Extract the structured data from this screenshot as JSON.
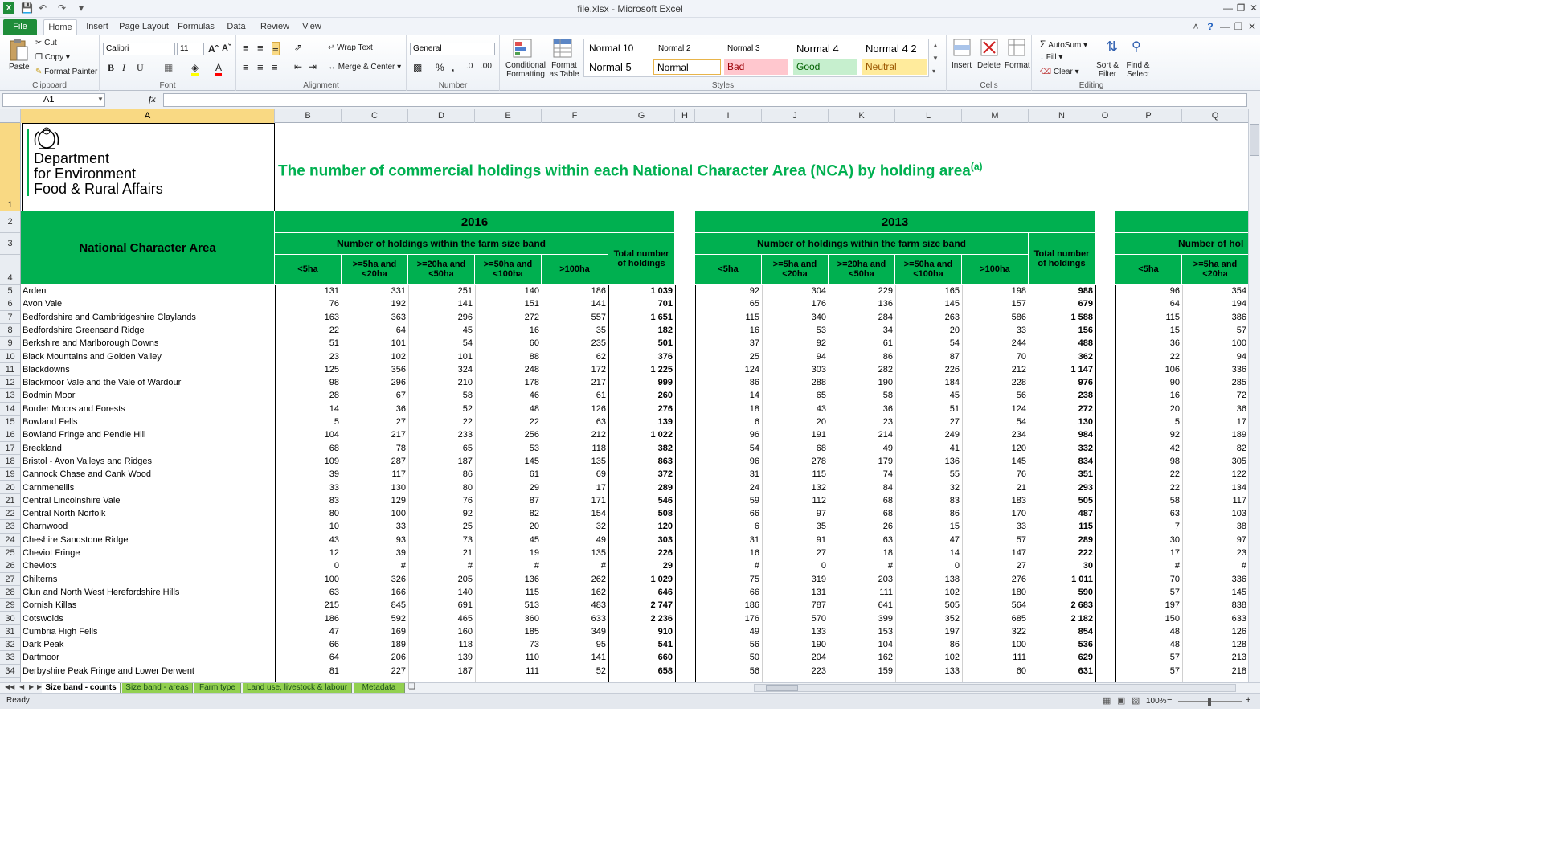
{
  "window": {
    "title": "file.xlsx - Microsoft Excel"
  },
  "tabs": [
    "File",
    "Home",
    "Insert",
    "Page Layout",
    "Formulas",
    "Data",
    "Review",
    "View"
  ],
  "ribbon": {
    "clipboard": {
      "paste": "Paste",
      "cut": "Cut",
      "copy": "Copy",
      "format_painter": "Format Painter",
      "group": "Clipboard"
    },
    "font": {
      "name": "Calibri",
      "size": "11",
      "group": "Font"
    },
    "alignment": {
      "wrap": "Wrap Text",
      "merge": "Merge & Center",
      "group": "Alignment"
    },
    "number": {
      "format": "General",
      "group": "Number"
    },
    "styles": {
      "conditional": "Conditional Formatting",
      "format_table": "Format as Table",
      "group": "Styles",
      "cells": [
        {
          "label": "Normal 10",
          "bg": "#ffffff",
          "color": "#000000"
        },
        {
          "label": "Normal 2",
          "bg": "#ffffff",
          "color": "#000000"
        },
        {
          "label": "Normal 3",
          "bg": "#ffffff",
          "color": "#000000"
        },
        {
          "label": "Normal 4",
          "bg": "#ffffff",
          "color": "#000000"
        },
        {
          "label": "Normal 4 2",
          "bg": "#ffffff",
          "color": "#000000"
        },
        {
          "label": "Normal 5",
          "bg": "#ffffff",
          "color": "#000000"
        },
        {
          "label": "Normal",
          "bg": "#ffffff",
          "color": "#000000"
        },
        {
          "label": "Bad",
          "bg": "#ffc7ce",
          "color": "#9c0006"
        },
        {
          "label": "Good",
          "bg": "#c6efce",
          "color": "#006100"
        },
        {
          "label": "Neutral",
          "bg": "#ffeb9c",
          "color": "#9c5700"
        }
      ]
    },
    "cells": {
      "insert": "Insert",
      "delete": "Delete",
      "format": "Format",
      "group": "Cells"
    },
    "editing": {
      "autosum": "AutoSum",
      "fill": "Fill",
      "clear": "Clear",
      "sort": "Sort & Filter",
      "find": "Find & Select",
      "group": "Editing"
    }
  },
  "formula_bar": {
    "name_box": "A1",
    "fx": "fx",
    "value": ""
  },
  "columns": [
    "A",
    "B",
    "C",
    "D",
    "E",
    "F",
    "G",
    "H",
    "I",
    "J",
    "K",
    "L",
    "M",
    "N",
    "O",
    "P",
    "Q"
  ],
  "rows": [
    1,
    2,
    3,
    4,
    5,
    6,
    7,
    8,
    9,
    10,
    11,
    12,
    13,
    14,
    15,
    16,
    17,
    18,
    19,
    20,
    21,
    22,
    23,
    24,
    25,
    26,
    27,
    28,
    29,
    30,
    31,
    32,
    33,
    34
  ],
  "logo": {
    "line1": "Department",
    "line2": "for Environment",
    "line3": "Food & Rural Affairs"
  },
  "sheet": {
    "title": "The number of commercial holdings within each National Character Area (NCA) by holding area",
    "title_sup": "(a)",
    "title_color": "#00b050",
    "header_color": "#00b050",
    "col_label": "National Character Area",
    "blocks": [
      {
        "year": "2016",
        "band_label": "Number of holdings within the farm size band",
        "total_label": "Total number of holdings"
      },
      {
        "year": "2013",
        "band_label": "Number of holdings within the farm size band",
        "total_label": "Total number of holdings"
      },
      {
        "year": "",
        "band_label": "Number of hol",
        "total_label": ""
      }
    ],
    "bands": [
      "<5ha",
      ">=5ha and <20ha",
      ">=20ha and <50ha",
      ">=50ha and <100ha",
      ">100ha"
    ],
    "data": [
      [
        "Arden",
        "131",
        "331",
        "251",
        "140",
        "186",
        "1 039",
        "92",
        "304",
        "229",
        "165",
        "198",
        "988",
        "96",
        "354"
      ],
      [
        "Avon Vale",
        "76",
        "192",
        "141",
        "151",
        "141",
        "701",
        "65",
        "176",
        "136",
        "145",
        "157",
        "679",
        "64",
        "194"
      ],
      [
        "Bedfordshire and Cambridgeshire Claylands",
        "163",
        "363",
        "296",
        "272",
        "557",
        "1 651",
        "115",
        "340",
        "284",
        "263",
        "586",
        "1 588",
        "115",
        "386"
      ],
      [
        "Bedfordshire Greensand Ridge",
        "22",
        "64",
        "45",
        "16",
        "35",
        "182",
        "16",
        "53",
        "34",
        "20",
        "33",
        "156",
        "15",
        "57"
      ],
      [
        "Berkshire and Marlborough Downs",
        "51",
        "101",
        "54",
        "60",
        "235",
        "501",
        "37",
        "92",
        "61",
        "54",
        "244",
        "488",
        "36",
        "100"
      ],
      [
        "Black Mountains and Golden Valley",
        "23",
        "102",
        "101",
        "88",
        "62",
        "376",
        "25",
        "94",
        "86",
        "87",
        "70",
        "362",
        "22",
        "94"
      ],
      [
        "Blackdowns",
        "125",
        "356",
        "324",
        "248",
        "172",
        "1 225",
        "124",
        "303",
        "282",
        "226",
        "212",
        "1 147",
        "106",
        "336"
      ],
      [
        "Blackmoor Vale and the Vale of Wardour",
        "98",
        "296",
        "210",
        "178",
        "217",
        "999",
        "86",
        "288",
        "190",
        "184",
        "228",
        "976",
        "90",
        "285"
      ],
      [
        "Bodmin Moor",
        "28",
        "67",
        "58",
        "46",
        "61",
        "260",
        "14",
        "65",
        "58",
        "45",
        "56",
        "238",
        "16",
        "72"
      ],
      [
        "Border Moors and Forests",
        "14",
        "36",
        "52",
        "48",
        "126",
        "276",
        "18",
        "43",
        "36",
        "51",
        "124",
        "272",
        "20",
        "36"
      ],
      [
        "Bowland Fells",
        "5",
        "27",
        "22",
        "22",
        "63",
        "139",
        "6",
        "20",
        "23",
        "27",
        "54",
        "130",
        "5",
        "17"
      ],
      [
        "Bowland Fringe and Pendle Hill",
        "104",
        "217",
        "233",
        "256",
        "212",
        "1 022",
        "96",
        "191",
        "214",
        "249",
        "234",
        "984",
        "92",
        "189"
      ],
      [
        "Breckland",
        "68",
        "78",
        "65",
        "53",
        "118",
        "382",
        "54",
        "68",
        "49",
        "41",
        "120",
        "332",
        "42",
        "82"
      ],
      [
        "Bristol - Avon Valleys and Ridges",
        "109",
        "287",
        "187",
        "145",
        "135",
        "863",
        "96",
        "278",
        "179",
        "136",
        "145",
        "834",
        "98",
        "305"
      ],
      [
        "Cannock Chase and Cank Wood",
        "39",
        "117",
        "86",
        "61",
        "69",
        "372",
        "31",
        "115",
        "74",
        "55",
        "76",
        "351",
        "22",
        "122"
      ],
      [
        "Carnmenellis",
        "33",
        "130",
        "80",
        "29",
        "17",
        "289",
        "24",
        "132",
        "84",
        "32",
        "21",
        "293",
        "22",
        "134"
      ],
      [
        "Central Lincolnshire Vale",
        "83",
        "129",
        "76",
        "87",
        "171",
        "546",
        "59",
        "112",
        "68",
        "83",
        "183",
        "505",
        "58",
        "117"
      ],
      [
        "Central North Norfolk",
        "80",
        "100",
        "92",
        "82",
        "154",
        "508",
        "66",
        "97",
        "68",
        "86",
        "170",
        "487",
        "63",
        "103"
      ],
      [
        "Charnwood",
        "10",
        "33",
        "25",
        "20",
        "32",
        "120",
        "6",
        "35",
        "26",
        "15",
        "33",
        "115",
        "7",
        "38"
      ],
      [
        "Cheshire Sandstone Ridge",
        "43",
        "93",
        "73",
        "45",
        "49",
        "303",
        "31",
        "91",
        "63",
        "47",
        "57",
        "289",
        "30",
        "97"
      ],
      [
        "Cheviot Fringe",
        "12",
        "39",
        "21",
        "19",
        "135",
        "226",
        "16",
        "27",
        "18",
        "14",
        "147",
        "222",
        "17",
        "23"
      ],
      [
        "Cheviots",
        "0",
        "#",
        "#",
        "#",
        "#",
        "29",
        "#",
        "0",
        "#",
        "0",
        "27",
        "30",
        "#",
        "#"
      ],
      [
        "Chilterns",
        "100",
        "326",
        "205",
        "136",
        "262",
        "1 029",
        "75",
        "319",
        "203",
        "138",
        "276",
        "1 011",
        "70",
        "336"
      ],
      [
        "Clun and North West Herefordshire Hills",
        "63",
        "166",
        "140",
        "115",
        "162",
        "646",
        "66",
        "131",
        "111",
        "102",
        "180",
        "590",
        "57",
        "145"
      ],
      [
        "Cornish Killas",
        "215",
        "845",
        "691",
        "513",
        "483",
        "2 747",
        "186",
        "787",
        "641",
        "505",
        "564",
        "2 683",
        "197",
        "838"
      ],
      [
        "Cotswolds",
        "186",
        "592",
        "465",
        "360",
        "633",
        "2 236",
        "176",
        "570",
        "399",
        "352",
        "685",
        "2 182",
        "150",
        "633"
      ],
      [
        "Cumbria High Fells",
        "47",
        "169",
        "160",
        "185",
        "349",
        "910",
        "49",
        "133",
        "153",
        "197",
        "322",
        "854",
        "48",
        "126"
      ],
      [
        "Dark Peak",
        "66",
        "189",
        "118",
        "73",
        "95",
        "541",
        "56",
        "190",
        "104",
        "86",
        "100",
        "536",
        "48",
        "128"
      ],
      [
        "Dartmoor",
        "64",
        "206",
        "139",
        "110",
        "141",
        "660",
        "50",
        "204",
        "162",
        "102",
        "111",
        "629",
        "57",
        "213"
      ],
      [
        "Derbyshire Peak Fringe and Lower Derwent",
        "81",
        "227",
        "187",
        "111",
        "52",
        "658",
        "56",
        "223",
        "159",
        "133",
        "60",
        "631",
        "57",
        "218"
      ]
    ]
  },
  "sheet_tabs": [
    {
      "label": "Size band - counts",
      "active": true
    },
    {
      "label": "Size band - areas",
      "active": false
    },
    {
      "label": "Farm type",
      "active": false
    },
    {
      "label": "Land use, livestock & labour",
      "active": false
    },
    {
      "label": "Metadata",
      "active": false
    }
  ],
  "status": {
    "text": "Ready",
    "zoom": "100%"
  }
}
